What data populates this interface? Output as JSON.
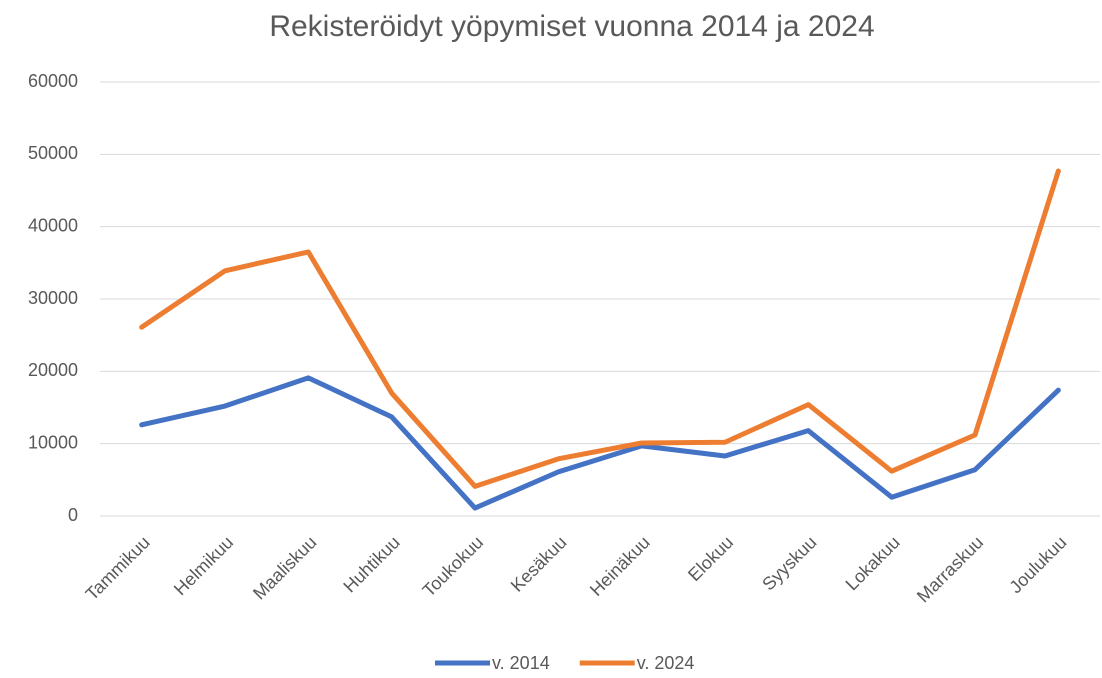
{
  "chart_data": {
    "type": "line",
    "title": "Rekisteröidyt yöpymiset vuonna 2014 ja 2024",
    "categories": [
      "Tammikuu",
      "Helmikuu",
      "Maaliskuu",
      "Huhtikuu",
      "Toukokuu",
      "Kesäkuu",
      "Heinäkuu",
      "Elokuu",
      "Syyskuu",
      "Lokakuu",
      "Marraskuu",
      "Joulukuu"
    ],
    "series": [
      {
        "name": "v. 2014",
        "color": "#4472c4",
        "values": [
          12600,
          15200,
          19100,
          13700,
          1100,
          6100,
          9700,
          8300,
          11800,
          2600,
          6400,
          17400
        ]
      },
      {
        "name": "v. 2024",
        "color": "#ed7d31",
        "values": [
          26100,
          33900,
          36500,
          17000,
          4100,
          7900,
          10100,
          10200,
          15400,
          6200,
          11200,
          47700
        ]
      }
    ],
    "ylim": [
      0,
      60000
    ],
    "yticks": [
      0,
      10000,
      20000,
      30000,
      40000,
      50000,
      60000
    ],
    "grid": true,
    "legend": "bottom"
  }
}
